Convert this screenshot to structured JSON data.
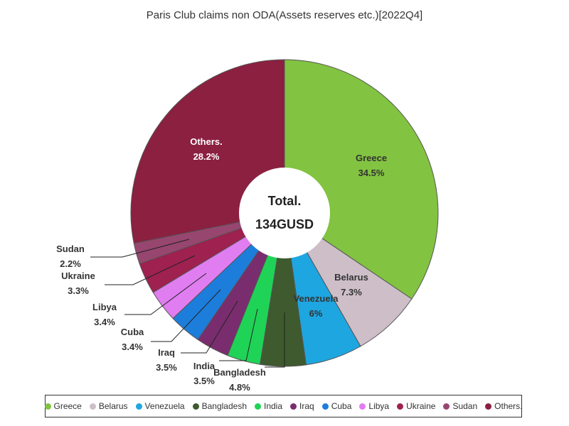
{
  "chart_data": {
    "type": "pie",
    "title": "Paris Club claims non ODA(Assets reserves etc.)[2022Q4]",
    "center_label": "Total.",
    "center_value": "134GUSD",
    "legend_position": "bottom",
    "slices": [
      {
        "name": "Greece",
        "value": 34.5,
        "label": "34.5%",
        "color": "#82c341"
      },
      {
        "name": "Belarus",
        "value": 7.3,
        "label": "7.3%",
        "color": "#cdbec8"
      },
      {
        "name": "Venezuela",
        "value": 6.0,
        "label": "6%",
        "color": "#1ea6e0"
      },
      {
        "name": "Bangladesh",
        "value": 4.8,
        "label": "4.8%",
        "color": "#3e5a2e"
      },
      {
        "name": "India",
        "value": 3.5,
        "label": "3.5%",
        "color": "#1fd357"
      },
      {
        "name": "Iraq",
        "value": 3.5,
        "label": "3.5%",
        "color": "#7a2d6e"
      },
      {
        "name": "Cuba",
        "value": 3.4,
        "label": "3.4%",
        "color": "#1d7ddb"
      },
      {
        "name": "Libya",
        "value": 3.4,
        "label": "3.4%",
        "color": "#e07df0"
      },
      {
        "name": "Ukraine",
        "value": 3.3,
        "label": "3.3%",
        "color": "#9e2150"
      },
      {
        "name": "Sudan",
        "value": 2.2,
        "label": "2.2%",
        "color": "#97466f"
      },
      {
        "name": "Others.",
        "value": 28.2,
        "label": "28.2%",
        "color": "#8b2040"
      }
    ]
  }
}
